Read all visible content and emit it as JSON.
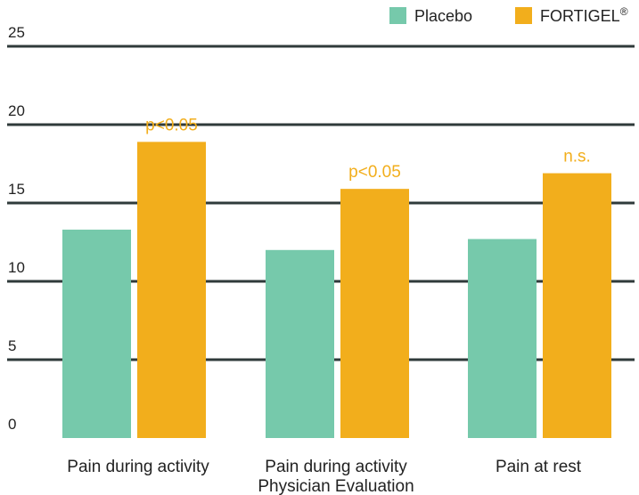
{
  "colors": {
    "placebo": "#76c9ab",
    "fortigel": "#f2ae1c",
    "grid": "#2f3a3a",
    "text": "#222222"
  },
  "legend": [
    {
      "label": "Placebo",
      "color": "#76c9ab"
    },
    {
      "label": "FORTIGEL",
      "sup": "®",
      "color": "#f2ae1c"
    }
  ],
  "chart_data": {
    "type": "bar",
    "categories": [
      [
        "Pain during activity"
      ],
      [
        "Pain during activity",
        "Physician Evaluation"
      ],
      [
        "Pain at rest"
      ]
    ],
    "series": [
      {
        "name": "Placebo",
        "values": [
          13.3,
          12.0,
          12.7
        ]
      },
      {
        "name": "FORTIGEL®",
        "values": [
          18.9,
          15.9,
          16.9
        ]
      }
    ],
    "annotations": [
      "p<0.05",
      "p<0.05",
      "n.s."
    ],
    "ylim": [
      0,
      25
    ],
    "yticks": [
      0,
      5,
      10,
      15,
      20,
      25
    ],
    "grid": true,
    "legend_position": "top-right",
    "title": "",
    "xlabel": "",
    "ylabel": ""
  }
}
